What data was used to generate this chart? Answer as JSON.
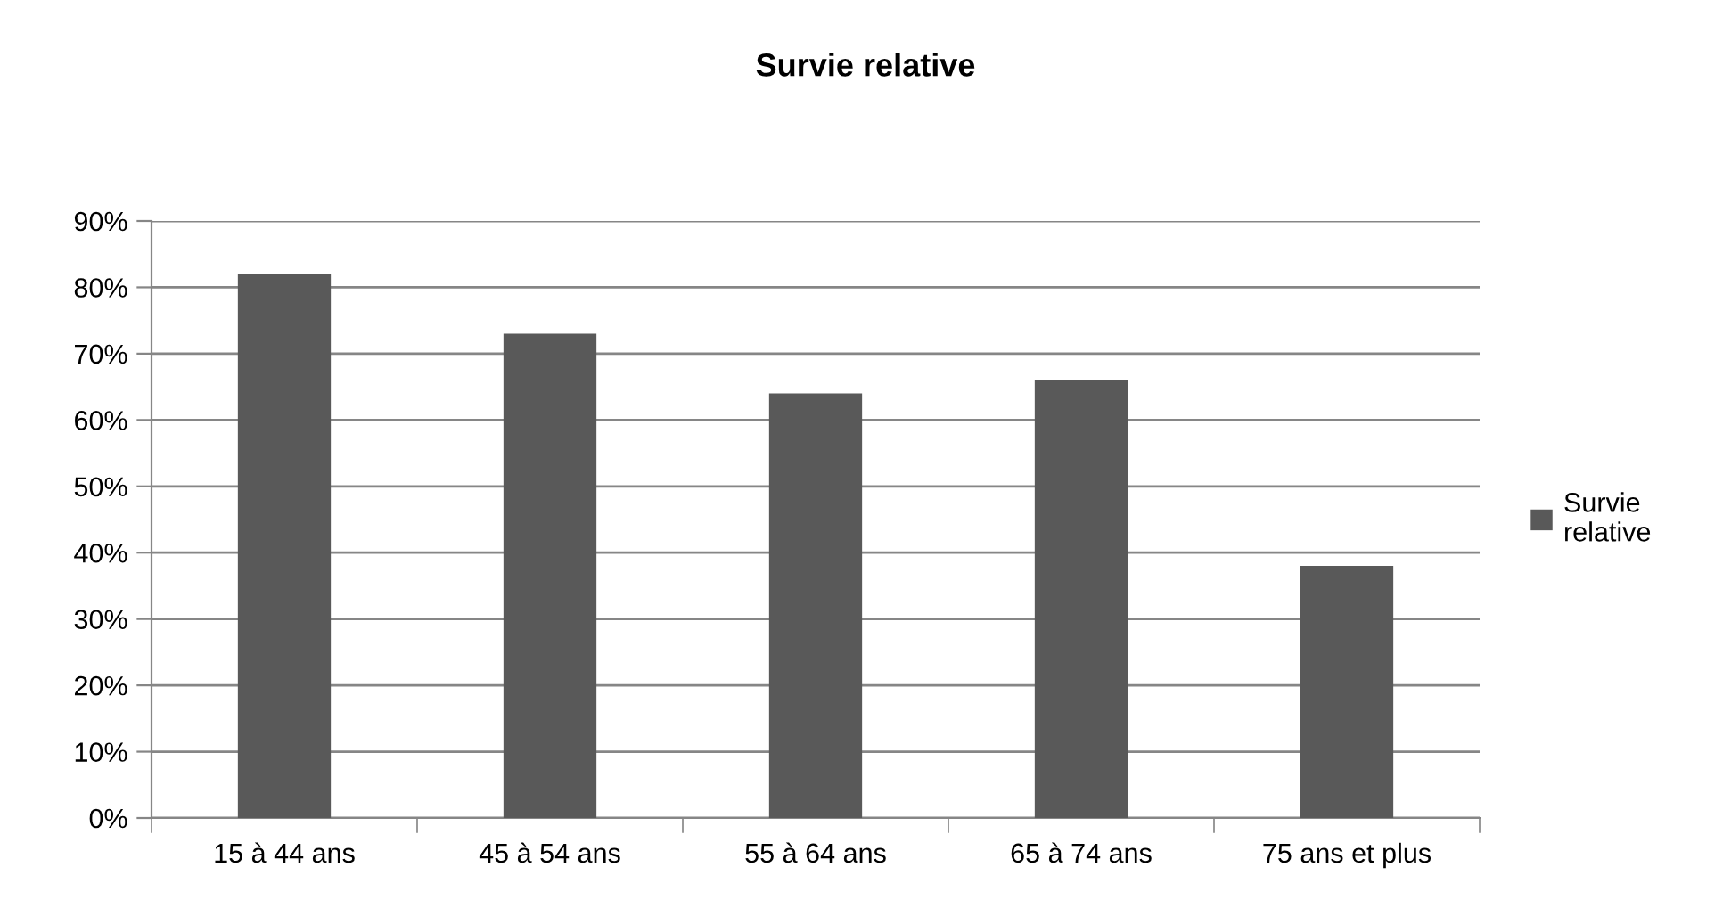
{
  "chart_data": {
    "type": "bar",
    "title": "Survie relative",
    "categories": [
      "15 à 44 ans",
      "45 à 54 ans",
      "55 à 64 ans",
      "65 à 74 ans",
      "75 ans et plus"
    ],
    "series": [
      {
        "name": "Survie relative",
        "color": "#595959",
        "values": [
          82,
          73,
          64,
          66,
          38
        ]
      }
    ],
    "ylim": [
      0,
      90
    ],
    "yticks": [
      {
        "value": 0,
        "label": "0%"
      },
      {
        "value": 10,
        "label": "10%"
      },
      {
        "value": 20,
        "label": "20%"
      },
      {
        "value": 30,
        "label": "30%"
      },
      {
        "value": 40,
        "label": "40%"
      },
      {
        "value": 50,
        "label": "50%"
      },
      {
        "value": 60,
        "label": "60%"
      },
      {
        "value": 70,
        "label": "70%"
      },
      {
        "value": 80,
        "label": "80%"
      },
      {
        "value": 90,
        "label": "90%"
      }
    ],
    "grid": "y",
    "legend": "right"
  }
}
